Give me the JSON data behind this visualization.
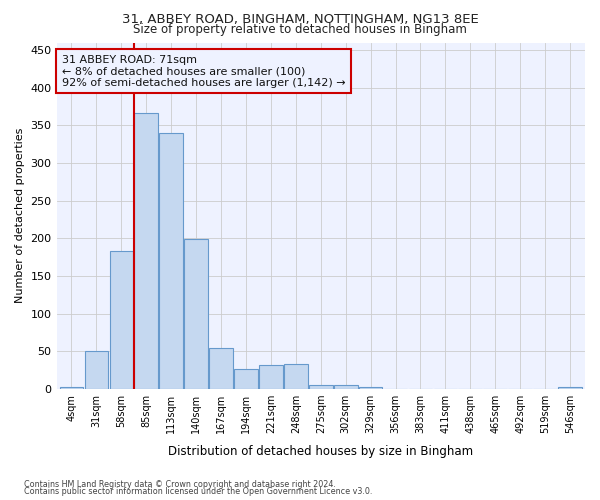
{
  "title_line1": "31, ABBEY ROAD, BINGHAM, NOTTINGHAM, NG13 8EE",
  "title_line2": "Size of property relative to detached houses in Bingham",
  "xlabel": "Distribution of detached houses by size in Bingham",
  "ylabel": "Number of detached properties",
  "categories": [
    "4sqm",
    "31sqm",
    "58sqm",
    "85sqm",
    "113sqm",
    "140sqm",
    "167sqm",
    "194sqm",
    "221sqm",
    "248sqm",
    "275sqm",
    "302sqm",
    "329sqm",
    "356sqm",
    "383sqm",
    "411sqm",
    "438sqm",
    "465sqm",
    "492sqm",
    "519sqm",
    "546sqm"
  ],
  "values": [
    3,
    50,
    183,
    367,
    340,
    199,
    54,
    26,
    32,
    33,
    6,
    6,
    3,
    0,
    0,
    0,
    0,
    0,
    0,
    0,
    3
  ],
  "bar_color": "#c5d8f0",
  "bar_edge_color": "#6699cc",
  "grid_color": "#cccccc",
  "vline_color": "#cc0000",
  "vline_x_index": 2.5,
  "annotation_text": "31 ABBEY ROAD: 71sqm\n← 8% of detached houses are smaller (100)\n92% of semi-detached houses are larger (1,142) →",
  "annotation_box_edge_color": "#cc0000",
  "ylim": [
    0,
    460
  ],
  "yticks": [
    0,
    50,
    100,
    150,
    200,
    250,
    300,
    350,
    400,
    450
  ],
  "footer1": "Contains HM Land Registry data © Crown copyright and database right 2024.",
  "footer2": "Contains public sector information licensed under the Open Government Licence v3.0.",
  "bg_color": "#ffffff",
  "plot_bg_color": "#eef2ff"
}
